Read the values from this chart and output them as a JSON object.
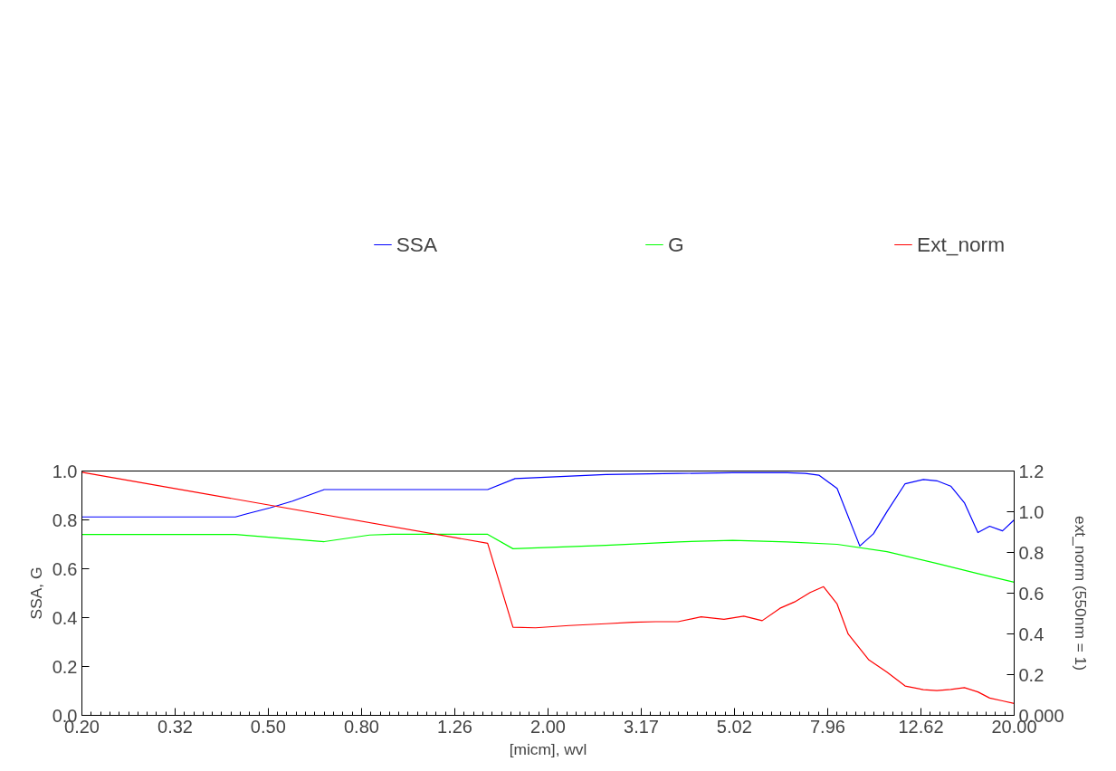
{
  "chart_data": {
    "type": "line",
    "xlabel": "[micm], wvl",
    "ylabel": "SSA, G",
    "y2label": "ext_norm (550nm = 1)",
    "log": "x",
    "grid": false,
    "legend": "top",
    "marker": "none",
    "line_style": "solid",
    "xlim": [
      0.2,
      20.0
    ],
    "xticks": [
      {
        "value": 0.2,
        "label": "0.20"
      },
      {
        "value": 0.317,
        "label": "0.32"
      },
      {
        "value": 0.502,
        "label": "0.50"
      },
      {
        "value": 0.796,
        "label": "0.80"
      },
      {
        "value": 1.262,
        "label": "1.26"
      },
      {
        "value": 2.0,
        "label": "2.00"
      },
      {
        "value": 3.17,
        "label": "3.17"
      },
      {
        "value": 5.02,
        "label": "5.02"
      },
      {
        "value": 7.96,
        "label": "7.96"
      },
      {
        "value": 12.62,
        "label": "12.62"
      },
      {
        "value": 20.0,
        "label": "20.00"
      }
    ],
    "ylim": [
      0,
      1.0
    ],
    "yticks": [
      {
        "value": 0,
        "label": "0.0"
      },
      0.2,
      0.4,
      0.6,
      0.8,
      {
        "value": 1.0,
        "label": "1.0"
      }
    ],
    "y2lim": [
      0,
      1.2
    ],
    "y2ticks": [
      {
        "value": 0,
        "label": "0.000"
      },
      0.2,
      0.4,
      0.6,
      0.8,
      {
        "value": 1.0,
        "label": "1.0"
      },
      1.2
    ],
    "series": [
      {
        "name": "SSA",
        "color": "#0000ff",
        "x": [
          0.2,
          0.427,
          0.452,
          0.506,
          0.566,
          0.662,
          1.484,
          1.7,
          2.66,
          3.8,
          4.98,
          6.52,
          7.13,
          7.62,
          8.34,
          9.33,
          9.98,
          10.67,
          11.67,
          12.77,
          13.65,
          14.62,
          15.64,
          16.72,
          17.72,
          18.88,
          20.0
        ],
        "values": [
          0.812,
          0.812,
          0.825,
          0.849,
          0.877,
          0.924,
          0.924,
          0.969,
          0.986,
          0.99,
          0.993,
          0.993,
          0.99,
          0.983,
          0.929,
          0.693,
          0.743,
          0.834,
          0.948,
          0.965,
          0.96,
          0.938,
          0.87,
          0.748,
          0.774,
          0.755,
          0.8
        ]
      },
      {
        "name": "G",
        "color": "#00ff00",
        "x": [
          0.2,
          0.427,
          0.662,
          0.828,
          0.926,
          1.484,
          1.682,
          2.66,
          3.8,
          4.98,
          6.52,
          8.34,
          10.67,
          13.65,
          16.72,
          20.0
        ],
        "values": [
          0.74,
          0.74,
          0.711,
          0.738,
          0.741,
          0.741,
          0.682,
          0.696,
          0.71,
          0.716,
          0.71,
          0.7,
          0.67,
          0.622,
          0.58,
          0.545
        ]
      },
      {
        "name": "Ext_norm",
        "color": "#ff0000",
        "axis": "y2",
        "x": [
          0.2,
          1.484,
          1.682,
          1.88,
          2.22,
          2.66,
          3.04,
          3.4,
          3.8,
          4.26,
          4.77,
          5.26,
          5.76,
          6.29,
          6.76,
          7.3,
          7.8,
          8.34,
          8.81,
          9.76,
          10.67,
          11.67,
          12.77,
          13.65,
          14.62,
          15.64,
          16.72,
          17.72,
          18.88,
          20.0
        ],
        "values": [
          1.194,
          0.845,
          0.433,
          0.43,
          0.441,
          0.45,
          0.457,
          0.46,
          0.46,
          0.484,
          0.472,
          0.487,
          0.465,
          0.526,
          0.557,
          0.603,
          0.632,
          0.547,
          0.399,
          0.272,
          0.212,
          0.144,
          0.126,
          0.122,
          0.127,
          0.136,
          0.115,
          0.085,
          0.071,
          0.058
        ]
      }
    ]
  }
}
